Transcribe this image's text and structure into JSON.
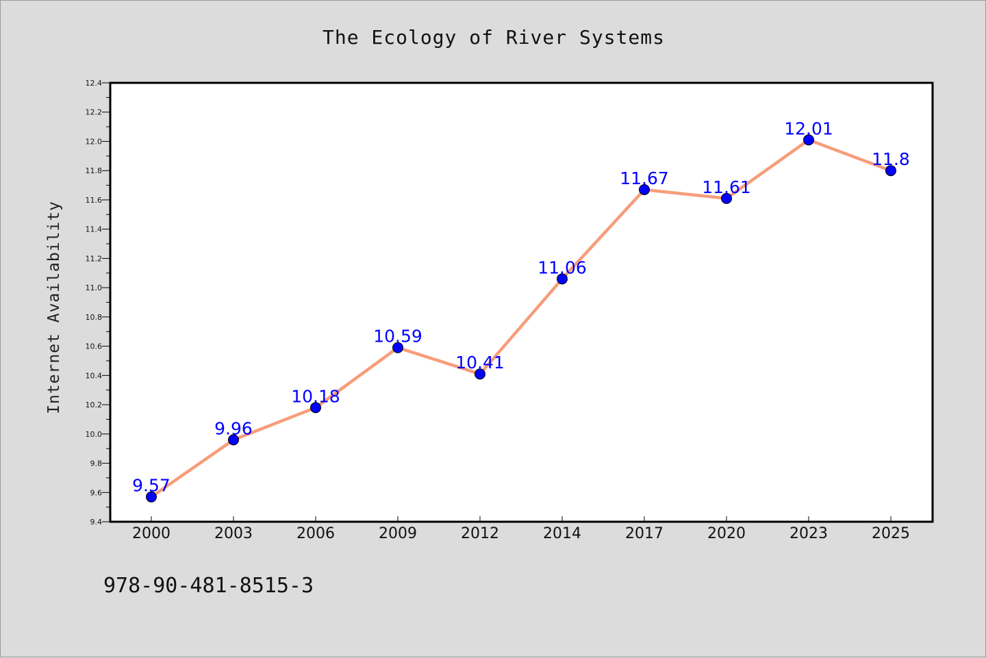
{
  "chart_data": {
    "type": "line",
    "title": "The Ecology of River Systems",
    "xlabel": "",
    "ylabel": "Internet Availability",
    "categories": [
      "2000",
      "2003",
      "2006",
      "2009",
      "2012",
      "2014",
      "2017",
      "2020",
      "2023",
      "2025"
    ],
    "series": [
      {
        "values": [
          9.57,
          9.96,
          10.18,
          10.59,
          10.41,
          11.06,
          11.67,
          11.61,
          12.01,
          11.8
        ],
        "data_labels": [
          "9.57",
          "9.96",
          "10.18",
          "10.59",
          "10.41",
          "11.06",
          "11.67",
          "11.61",
          "12.01",
          "11.8"
        ]
      }
    ],
    "ylim": [
      9.4,
      12.4
    ],
    "yticks": [
      "9.4",
      "9.6",
      "9.8",
      "10.0",
      "10.2",
      "10.4",
      "10.6",
      "10.8",
      "11.0",
      "11.2",
      "11.4",
      "11.6",
      "11.8",
      "12.0",
      "12.2",
      "12.4"
    ],
    "grid": false,
    "line_color": "#f79d7a",
    "marker_color": "#0000ff",
    "label_color": "#0000ff",
    "plot_background": "#ffffff",
    "page_background": "#dcdcdc"
  },
  "footer_text": "978-90-481-8515-3"
}
